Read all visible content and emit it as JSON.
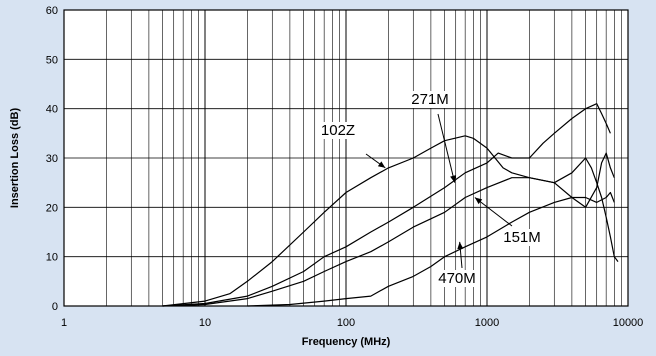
{
  "chart_data": {
    "type": "line",
    "title": "",
    "xlabel": "Frequency (MHz)",
    "ylabel": "Insertion Loss (dB)",
    "xscale": "log",
    "xlim": [
      1,
      10000
    ],
    "ylim": [
      0,
      60
    ],
    "grid": true,
    "x_ticks": [
      {
        "value": 1,
        "label": "1"
      },
      {
        "value": 10,
        "label": "10"
      },
      {
        "value": 100,
        "label": "100"
      },
      {
        "value": 1000,
        "label": "1000"
      },
      {
        "value": 10000,
        "label": "10000"
      }
    ],
    "y_ticks": [
      {
        "value": 0,
        "label": "0"
      },
      {
        "value": 10,
        "label": "10"
      },
      {
        "value": 20,
        "label": "20"
      },
      {
        "value": 30,
        "label": "30"
      },
      {
        "value": 40,
        "label": "40"
      },
      {
        "value": 50,
        "label": "50"
      },
      {
        "value": 60,
        "label": "60"
      }
    ],
    "series": [
      {
        "name": "102Z",
        "points": [
          [
            5,
            0
          ],
          [
            10,
            1
          ],
          [
            15,
            2.5
          ],
          [
            20,
            5
          ],
          [
            30,
            9
          ],
          [
            50,
            15
          ],
          [
            70,
            19
          ],
          [
            100,
            23
          ],
          [
            150,
            26
          ],
          [
            200,
            28
          ],
          [
            300,
            30
          ],
          [
            400,
            32
          ],
          [
            500,
            33.5
          ],
          [
            700,
            34.5
          ],
          [
            800,
            34
          ],
          [
            1000,
            32
          ],
          [
            1300,
            28
          ],
          [
            1500,
            27
          ],
          [
            2000,
            26
          ],
          [
            3000,
            25
          ],
          [
            4000,
            27
          ],
          [
            5000,
            30
          ],
          [
            5500,
            28
          ],
          [
            6000,
            25
          ],
          [
            6500,
            22
          ],
          [
            7000,
            18
          ],
          [
            7500,
            14
          ],
          [
            8000,
            10
          ],
          [
            8500,
            9
          ]
        ]
      },
      {
        "name": "271M",
        "points": [
          [
            5,
            0
          ],
          [
            10,
            0.5
          ],
          [
            20,
            2
          ],
          [
            30,
            4
          ],
          [
            50,
            7
          ],
          [
            70,
            10
          ],
          [
            100,
            12
          ],
          [
            150,
            15
          ],
          [
            200,
            17
          ],
          [
            300,
            20
          ],
          [
            500,
            24
          ],
          [
            700,
            27
          ],
          [
            1000,
            29
          ],
          [
            1200,
            31
          ],
          [
            1500,
            30
          ],
          [
            2000,
            30
          ],
          [
            2500,
            33
          ],
          [
            3000,
            35
          ],
          [
            4000,
            38
          ],
          [
            5000,
            40
          ],
          [
            6000,
            41
          ],
          [
            6500,
            39
          ],
          [
            7000,
            37
          ],
          [
            7500,
            35
          ]
        ]
      },
      {
        "name": "151M",
        "points": [
          [
            5,
            0
          ],
          [
            10,
            0.3
          ],
          [
            20,
            1.5
          ],
          [
            30,
            3
          ],
          [
            50,
            5
          ],
          [
            70,
            7
          ],
          [
            100,
            9
          ],
          [
            150,
            11
          ],
          [
            200,
            13
          ],
          [
            300,
            16
          ],
          [
            500,
            19
          ],
          [
            700,
            22
          ],
          [
            1000,
            24
          ],
          [
            1500,
            26
          ],
          [
            2000,
            26
          ],
          [
            3000,
            25
          ],
          [
            4000,
            22
          ],
          [
            5000,
            20
          ],
          [
            6000,
            24
          ],
          [
            6500,
            29
          ],
          [
            7000,
            31
          ],
          [
            7500,
            28
          ],
          [
            8000,
            26
          ]
        ]
      },
      {
        "name": "470M",
        "points": [
          [
            20,
            0
          ],
          [
            40,
            0.3
          ],
          [
            70,
            1
          ],
          [
            100,
            1.5
          ],
          [
            150,
            2
          ],
          [
            200,
            4
          ],
          [
            300,
            6
          ],
          [
            400,
            8
          ],
          [
            500,
            10
          ],
          [
            700,
            12
          ],
          [
            1000,
            14
          ],
          [
            1500,
            17
          ],
          [
            2000,
            19
          ],
          [
            3000,
            21
          ],
          [
            4000,
            22
          ],
          [
            5000,
            22
          ],
          [
            6000,
            21
          ],
          [
            7000,
            22
          ],
          [
            7500,
            23
          ],
          [
            8000,
            21
          ]
        ]
      }
    ],
    "annotations": [
      {
        "text": "102Z",
        "series": "102Z",
        "arrow_to": [
          190,
          28
        ]
      },
      {
        "text": "271M",
        "series": "271M",
        "arrow_to": [
          590,
          25
        ]
      },
      {
        "text": "151M",
        "series": "151M",
        "arrow_to": [
          820,
          22
        ]
      },
      {
        "text": "470M",
        "series": "470M",
        "arrow_to": [
          640,
          13
        ]
      }
    ]
  }
}
